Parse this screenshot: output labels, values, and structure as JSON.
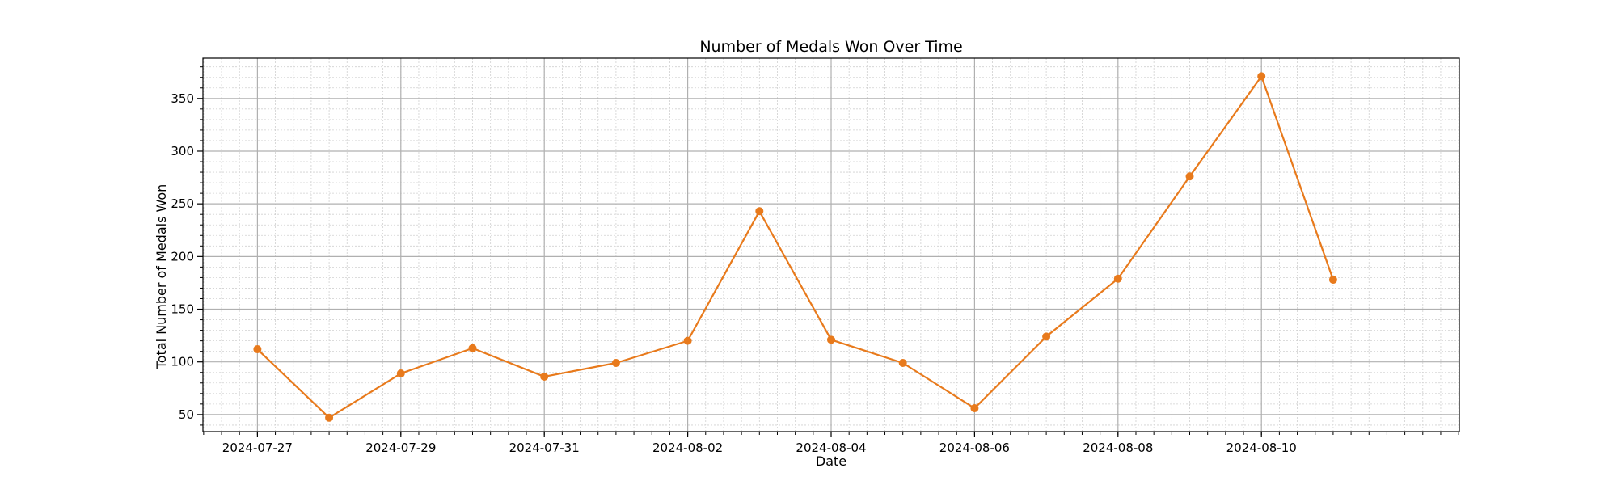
{
  "chart_data": {
    "type": "line",
    "title": "Number of Medals Won Over Time",
    "xlabel": "Date",
    "ylabel": "Total Number of Medals Won",
    "x": [
      "2024-07-27",
      "2024-07-28",
      "2024-07-29",
      "2024-07-30",
      "2024-07-31",
      "2024-08-01",
      "2024-08-02",
      "2024-08-03",
      "2024-08-04",
      "2024-08-05",
      "2024-08-06",
      "2024-08-07",
      "2024-08-08",
      "2024-08-09",
      "2024-08-10",
      "2024-08-11"
    ],
    "series": [
      {
        "values": [
          112,
          47,
          89,
          113,
          86,
          99,
          120,
          243,
          121,
          99,
          56,
          124,
          179,
          276,
          371,
          178
        ],
        "color": "#e87a1c"
      }
    ],
    "xlim": [
      "2024-07-26T05:46",
      "2024-08-12T18:14"
    ],
    "ylim": [
      33.8,
      388.2
    ],
    "xticks": [
      "2024-07-27",
      "2024-07-29",
      "2024-07-31",
      "2024-08-02",
      "2024-08-04",
      "2024-08-06",
      "2024-08-08",
      "2024-08-10"
    ],
    "yticks": [
      50,
      100,
      150,
      200,
      250,
      300,
      350
    ],
    "grid": "major and minor",
    "marker": "circle"
  }
}
